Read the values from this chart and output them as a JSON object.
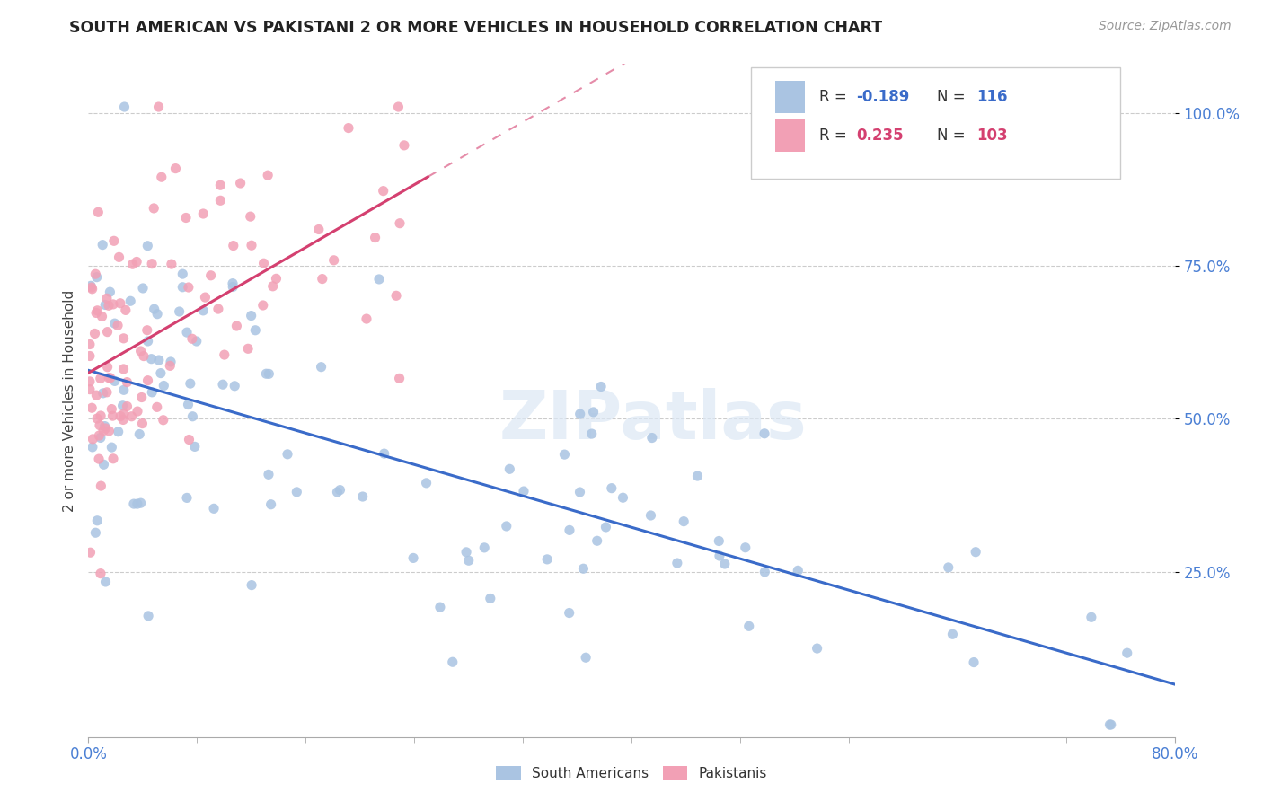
{
  "title": "SOUTH AMERICAN VS PAKISTANI 2 OR MORE VEHICLES IN HOUSEHOLD CORRELATION CHART",
  "source": "Source: ZipAtlas.com",
  "ylabel": "2 or more Vehicles in Household",
  "xlim": [
    0.0,
    0.8
  ],
  "ylim": [
    -0.02,
    1.08
  ],
  "yticks": [
    0.25,
    0.5,
    0.75,
    1.0
  ],
  "ytick_labels": [
    "25.0%",
    "50.0%",
    "75.0%",
    "100.0%"
  ],
  "xtick_labels": [
    "0.0%",
    "80.0%"
  ],
  "blue_R": -0.189,
  "blue_N": 116,
  "pink_R": 0.235,
  "pink_N": 103,
  "blue_color": "#aac4e2",
  "pink_color": "#f2a0b5",
  "blue_line_color": "#3a6bc9",
  "pink_line_color": "#d44070",
  "tick_color": "#4a7fd4",
  "watermark": "ZIPatlas",
  "legend_blue_label": "South Americans",
  "legend_pink_label": "Pakistanis"
}
